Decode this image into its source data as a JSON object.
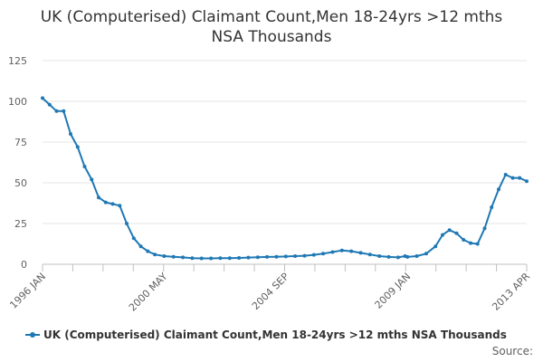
{
  "chart_data": {
    "type": "line",
    "title_lines": [
      "UK (Computerised) Claimant Count,Men 18-24yrs >12 mths",
      "NSA Thousands"
    ],
    "ylim": [
      0,
      125
    ],
    "y_ticks": [
      "0",
      "25",
      "50",
      "75",
      "100",
      "125"
    ],
    "x_tick_labels": [
      "1996 JAN",
      "2000 MAY",
      "2004 SEP",
      "2009 JAN",
      "2013 APR"
    ],
    "grid": true,
    "legend_position": "bottom",
    "series": [
      {
        "name": "UK (Computerised) Claimant Count,Men 18-24yrs >12 mths NSA Thousands",
        "color": "#1f78b4",
        "x": [
          "1996-01",
          "1996-04",
          "1996-07",
          "1996-10",
          "1997-01",
          "1997-04",
          "1997-07",
          "1997-10",
          "1998-01",
          "1998-04",
          "1998-07",
          "1998-10",
          "1999-01",
          "1999-04",
          "1999-07",
          "1999-10",
          "2000-01",
          "2000-05",
          "2000-09",
          "2001-01",
          "2001-05",
          "2001-09",
          "2002-01",
          "2002-05",
          "2002-09",
          "2003-01",
          "2003-05",
          "2003-09",
          "2004-01",
          "2004-05",
          "2004-09",
          "2005-01",
          "2005-05",
          "2005-09",
          "2006-01",
          "2006-05",
          "2006-09",
          "2007-01",
          "2007-05",
          "2007-09",
          "2008-01",
          "2008-05",
          "2008-09",
          "2008-12",
          "2009-01",
          "2009-05",
          "2009-09",
          "2010-01",
          "2010-04",
          "2010-07",
          "2010-10",
          "2011-01",
          "2011-04",
          "2011-07",
          "2011-10",
          "2012-01",
          "2012-04",
          "2012-07",
          "2012-10",
          "2013-01",
          "2013-04"
        ],
        "values": [
          102,
          98,
          94,
          94,
          80,
          72,
          60,
          52,
          41,
          38,
          37,
          36,
          25,
          16,
          11,
          8,
          6,
          5,
          4.6,
          4.2,
          3.8,
          3.6,
          3.6,
          3.7,
          3.8,
          3.9,
          4.1,
          4.3,
          4.5,
          4.6,
          4.8,
          5,
          5.2,
          5.8,
          6.5,
          7.5,
          8.5,
          8,
          7,
          6,
          5,
          4.5,
          4.2,
          5,
          4.5,
          5,
          6.5,
          11,
          18,
          21,
          19,
          15,
          13,
          12.5,
          22,
          35,
          46,
          55,
          53,
          53,
          51
        ]
      }
    ],
    "source_label": "Source:"
  }
}
